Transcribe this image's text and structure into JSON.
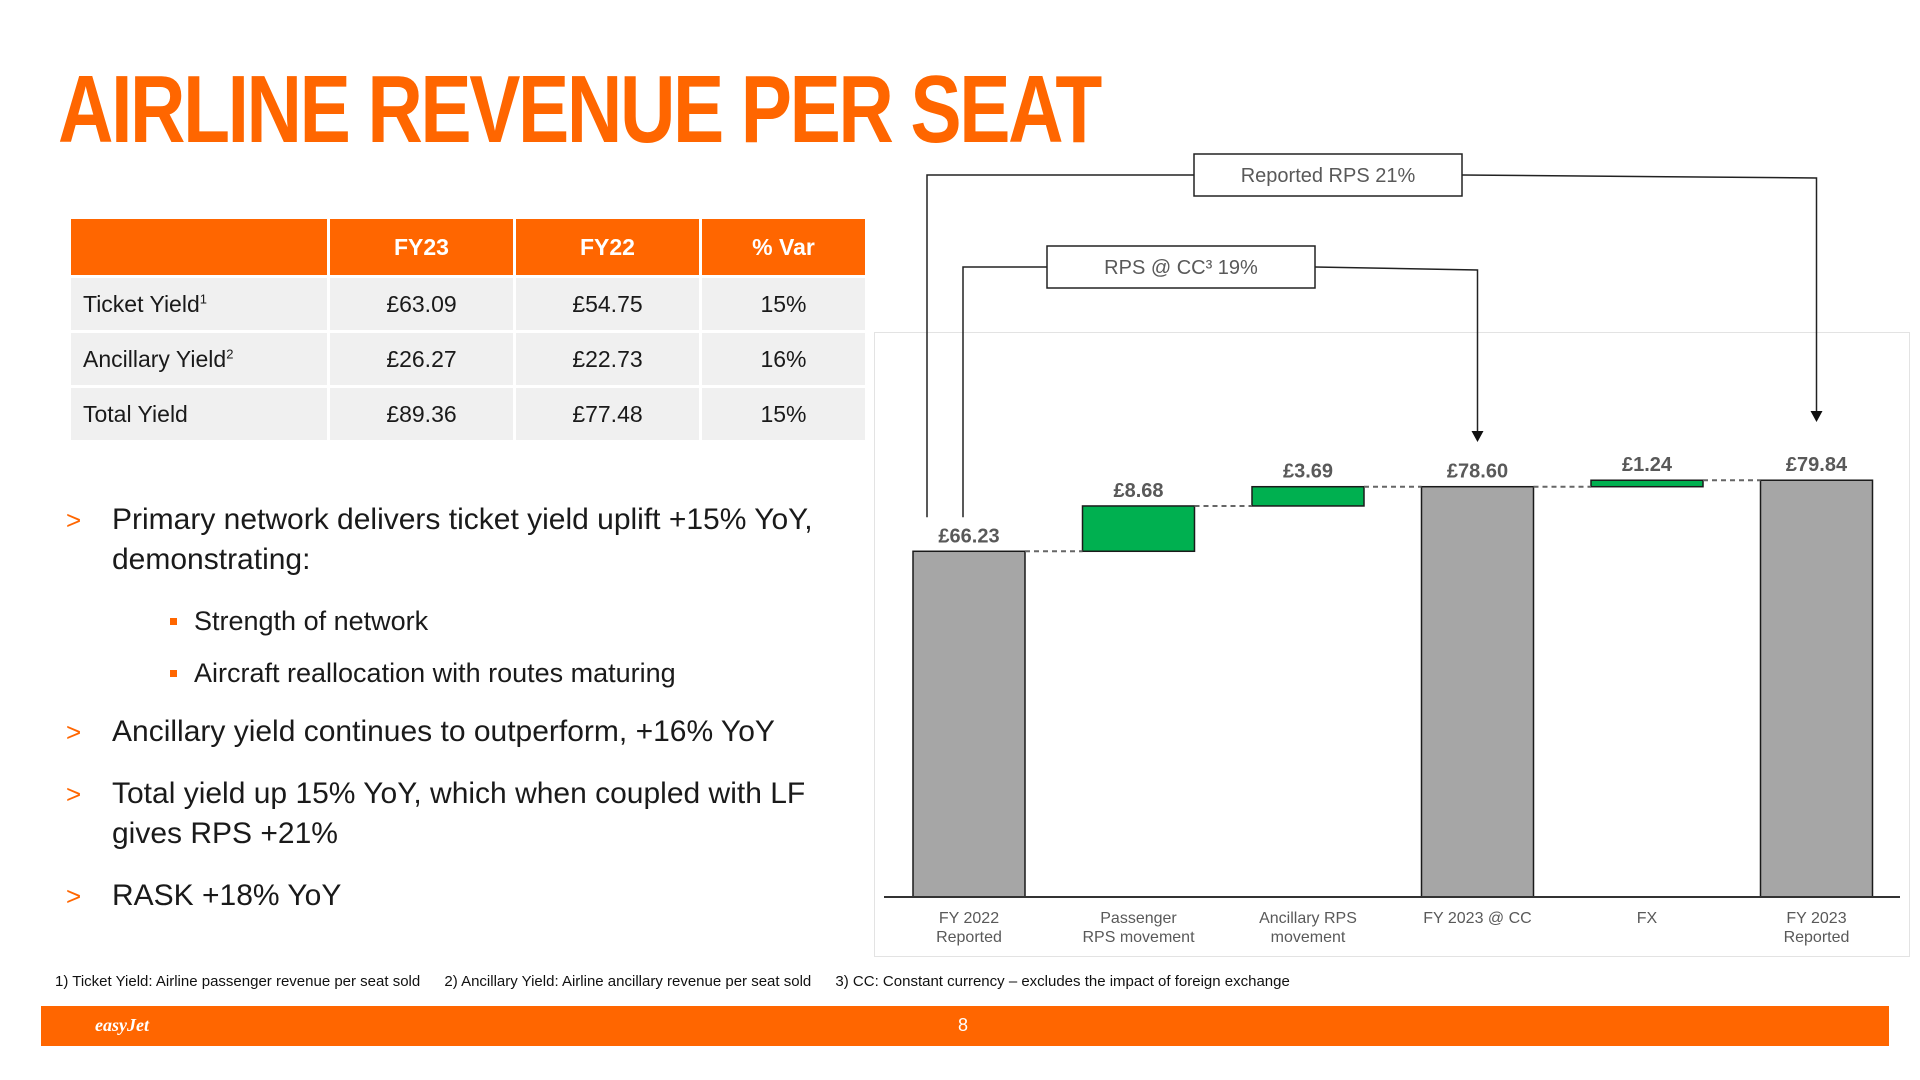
{
  "title": "AIRLINE REVENUE PER SEAT",
  "table": {
    "headers": [
      "",
      "FY23",
      "FY22",
      "% Var"
    ],
    "rows": [
      {
        "label": "Ticket Yield",
        "sup": "1",
        "fy23": "£63.09",
        "fy22": "£54.75",
        "var": "15%"
      },
      {
        "label": "Ancillary Yield",
        "sup": "2",
        "fy23": "£26.27",
        "fy22": "£22.73",
        "var": "16%"
      },
      {
        "label": "Total Yield",
        "sup": "",
        "fy23": "£89.36",
        "fy22": "£77.48",
        "var": "15%"
      }
    ]
  },
  "bullets": {
    "b1": "Primary network delivers ticket yield uplift +15% YoY, demonstrating:",
    "b1_sub1": "Strength of network",
    "b1_sub2": "Aircraft reallocation with routes maturing",
    "b2": "Ancillary yield continues to outperform, +16% YoY",
    "b3": "Total yield up 15% YoY, which when coupled with LF gives RPS  +21%",
    "b4": "RASK +18% YoY",
    "marker": ">"
  },
  "footnotes": {
    "f1": "1) Ticket Yield: Airline passenger revenue per seat sold",
    "f2": "2) Ancillary Yield: Airline ancillary revenue per seat sold",
    "f3": "3) CC: Constant currency – excludes the impact of foreign exchange"
  },
  "footer": {
    "brand": "easyJet",
    "page": "8"
  },
  "chart_data": {
    "type": "bar",
    "subtype": "waterfall",
    "categories": [
      "FY 2022\nReported",
      "Passenger\nRPS movement",
      "Ancillary RPS\nmovement",
      "FY 2023 @ CC",
      "FX",
      "FY 2023\nReported"
    ],
    "bars": [
      {
        "kind": "total",
        "start": 0,
        "end": 66.23,
        "label": "£66.23"
      },
      {
        "kind": "delta",
        "start": 66.23,
        "end": 74.91,
        "label": "£8.68"
      },
      {
        "kind": "delta",
        "start": 74.91,
        "end": 78.6,
        "label": "£3.69"
      },
      {
        "kind": "total",
        "start": 0,
        "end": 78.6,
        "label": "£78.60"
      },
      {
        "kind": "delta",
        "start": 78.6,
        "end": 79.84,
        "label": "£1.24"
      },
      {
        "kind": "total",
        "start": 0,
        "end": 79.84,
        "label": "£79.84"
      }
    ],
    "ylim": [
      0,
      80
    ],
    "annotations": [
      {
        "text": "Reported RPS 21%",
        "from": 0,
        "to": 5
      },
      {
        "text": "RPS @ CC³ 19%",
        "from": 0,
        "to": 3
      }
    ],
    "colors": {
      "total": "#a6a6a6",
      "increase": "#00b050",
      "text": "#595959",
      "connector": "#666666"
    }
  }
}
